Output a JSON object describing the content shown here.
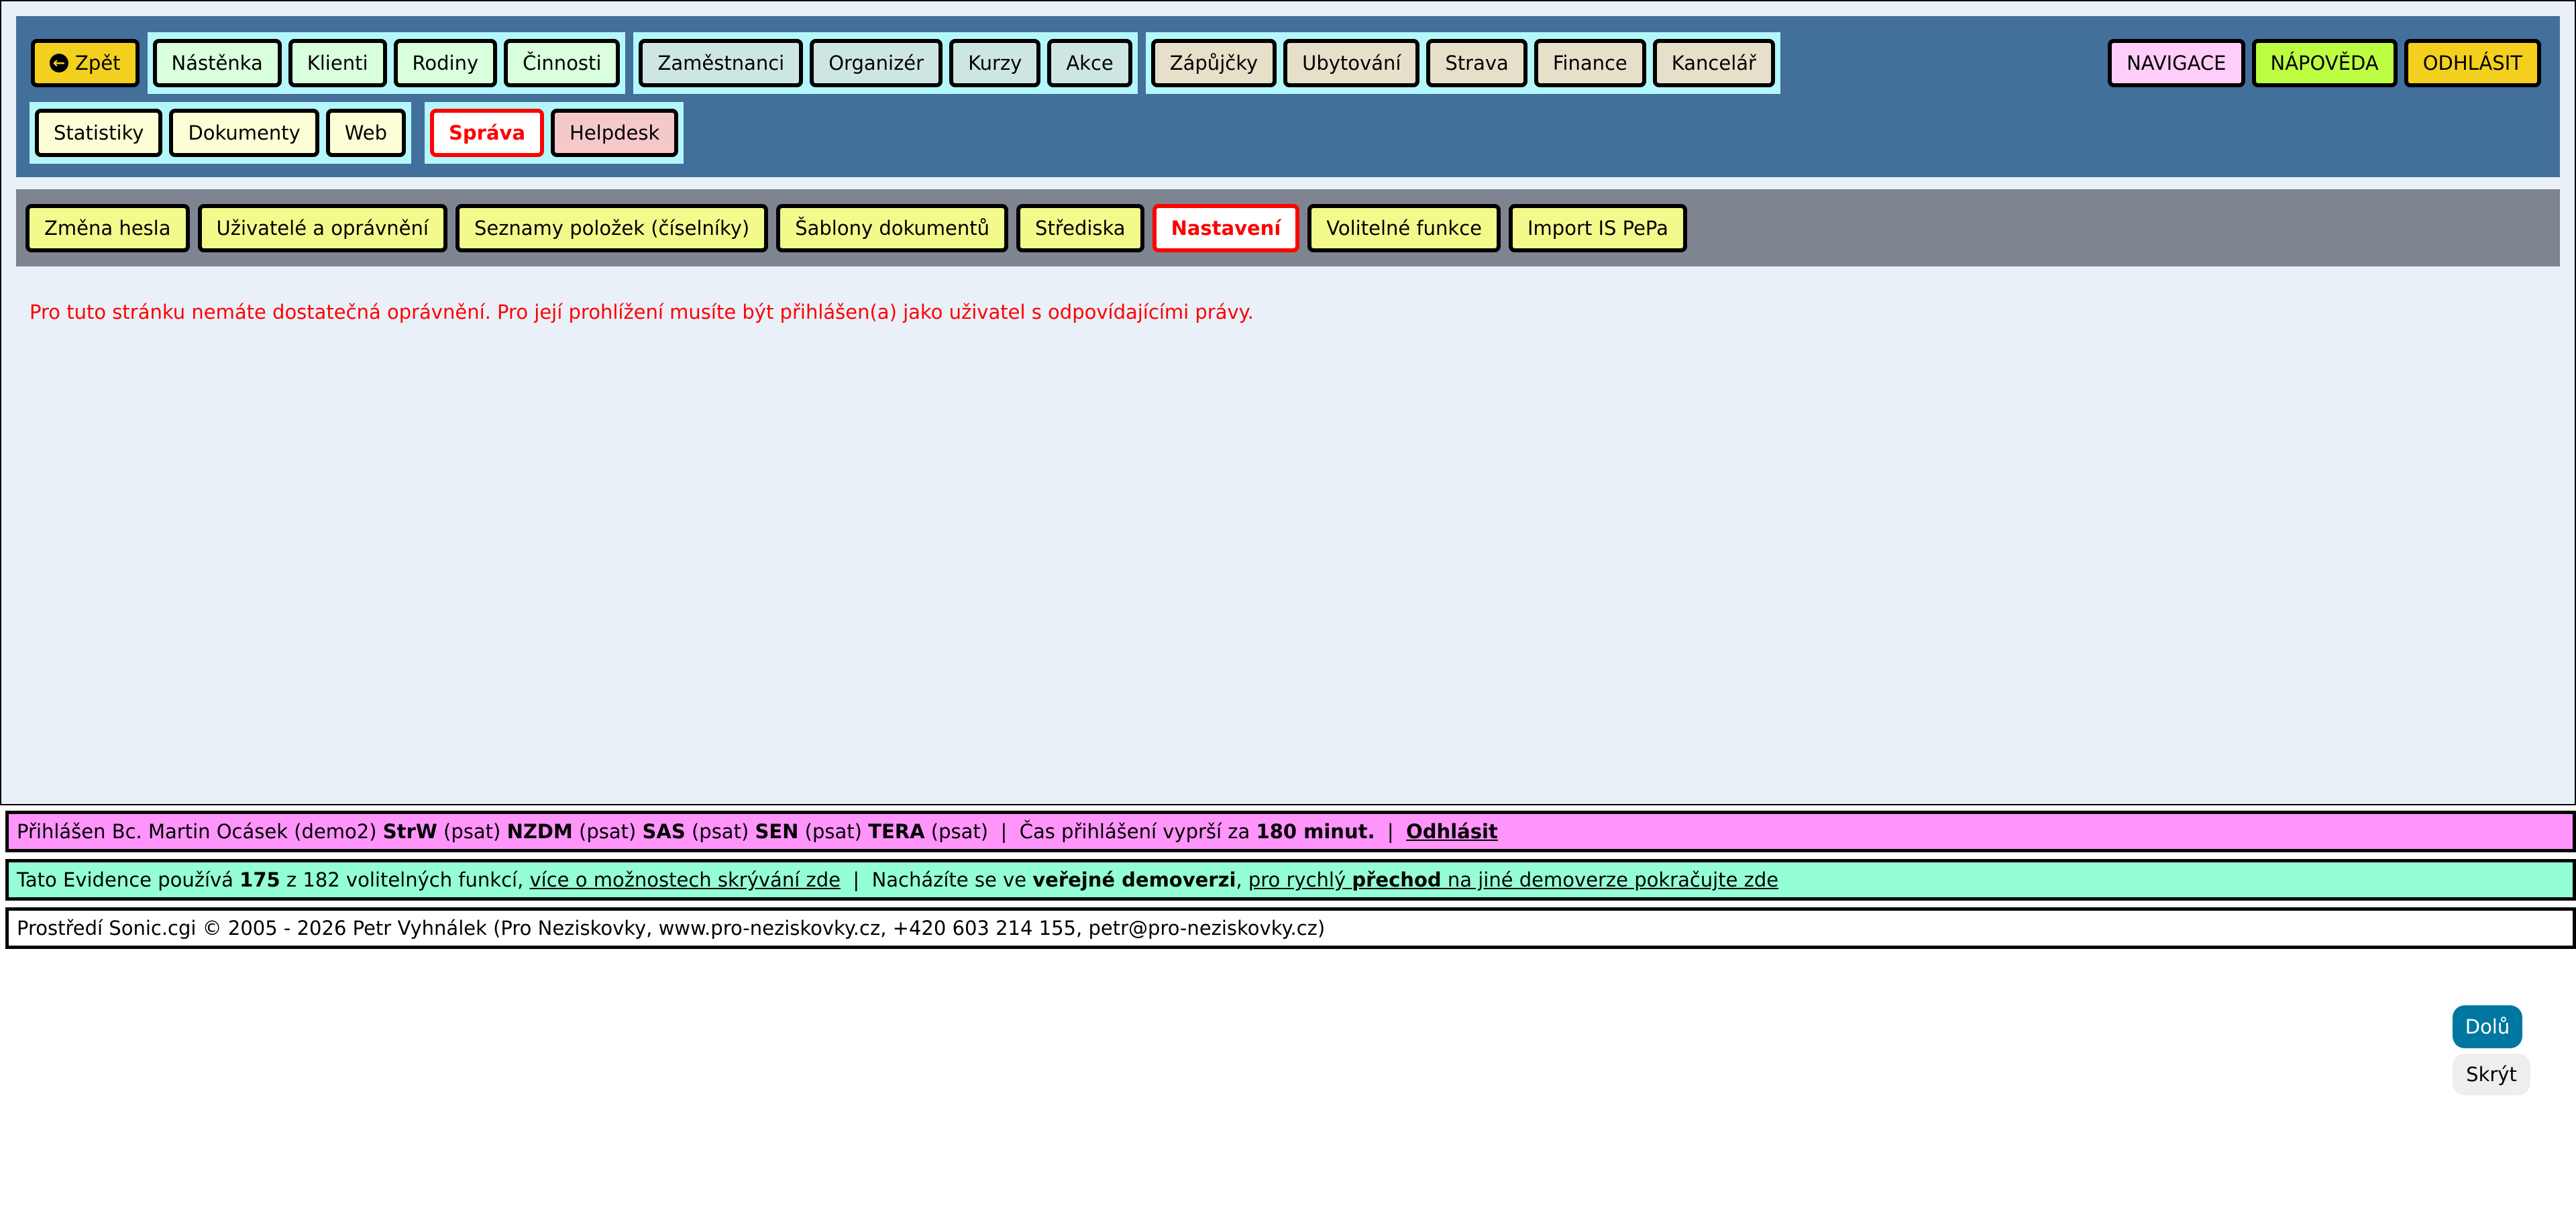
{
  "topnav": {
    "back": "Zpět",
    "group1": [
      "Nástěnka",
      "Klienti",
      "Rodiny",
      "Činnosti"
    ],
    "group2": [
      "Zaměstnanci",
      "Organizér",
      "Kurzy",
      "Akce"
    ],
    "group3": [
      "Zápůjčky",
      "Ubytování",
      "Strava",
      "Finance",
      "Kancelář"
    ],
    "right": [
      "NAVIGACE",
      "NÁPOVĚDA",
      "ODHLÁSIT"
    ],
    "group4": [
      "Statistiky",
      "Dokumenty",
      "Web"
    ],
    "group5": [
      "Správa",
      "Helpdesk"
    ]
  },
  "subnav": [
    "Změna hesla",
    "Uživatelé a oprávnění",
    "Seznamy položek (číselníky)",
    "Šablony dokumentů",
    "Střediska",
    "Nastavení",
    "Volitelné funkce",
    "Import IS PePa"
  ],
  "error": "Pro tuto stránku nemáte dostatečná oprávnění. Pro její prohlížení musíte být přihlášen(a) jako uživatel s odpovídajícími právy.",
  "login_bar": {
    "prefix": "Přihlášen Bc. Martin Ocásek (demo2) ",
    "r1": "StrW",
    "p1": " (psat) ",
    "r2": "NZDM",
    "p2": " (psat) ",
    "r3": "SAS",
    "p3": " (psat) ",
    "r4": "SEN",
    "p4": " (psat) ",
    "r5": "TERA",
    "p5": " (psat)  |  Čas přihlášení vyprší za ",
    "time": "180 minut.",
    "sep": "  |  ",
    "logout": "Odhlásit"
  },
  "features_bar": {
    "t1": "Tato Evidence používá ",
    "used": "175",
    "t2": " z 182 volitelných funkcí, ",
    "link1": "více o možnostech skrývání zde",
    "t3": "  |  Nacházíte se ve ",
    "demo": "veřejné demoverzi",
    "t4": ", ",
    "link2a": "pro rychlý ",
    "link2b": "přechod",
    "link2c": " na jiné demoverze pokračujte zde"
  },
  "footer": {
    "t1": "Prostředí ",
    "sonic": "Sonic.cgi",
    "t2": " © 2005 - 2026 Petr Vyhnálek (Pro Neziskovky, ",
    "web": "www.pro-neziskovky.cz",
    "t3": ", +420 603 214 155, ",
    "email": "petr@pro-neziskovky.cz",
    "t4": ")"
  },
  "floating": {
    "down": "Dolů",
    "hide": "Skrýt"
  },
  "colors": {
    "header": "#436f9b",
    "subnav": "#7f8590",
    "login_bar": "#ff94fb",
    "features_bar": "#94ffd7",
    "active": "#ff0000",
    "down_button": "#0077a0"
  }
}
